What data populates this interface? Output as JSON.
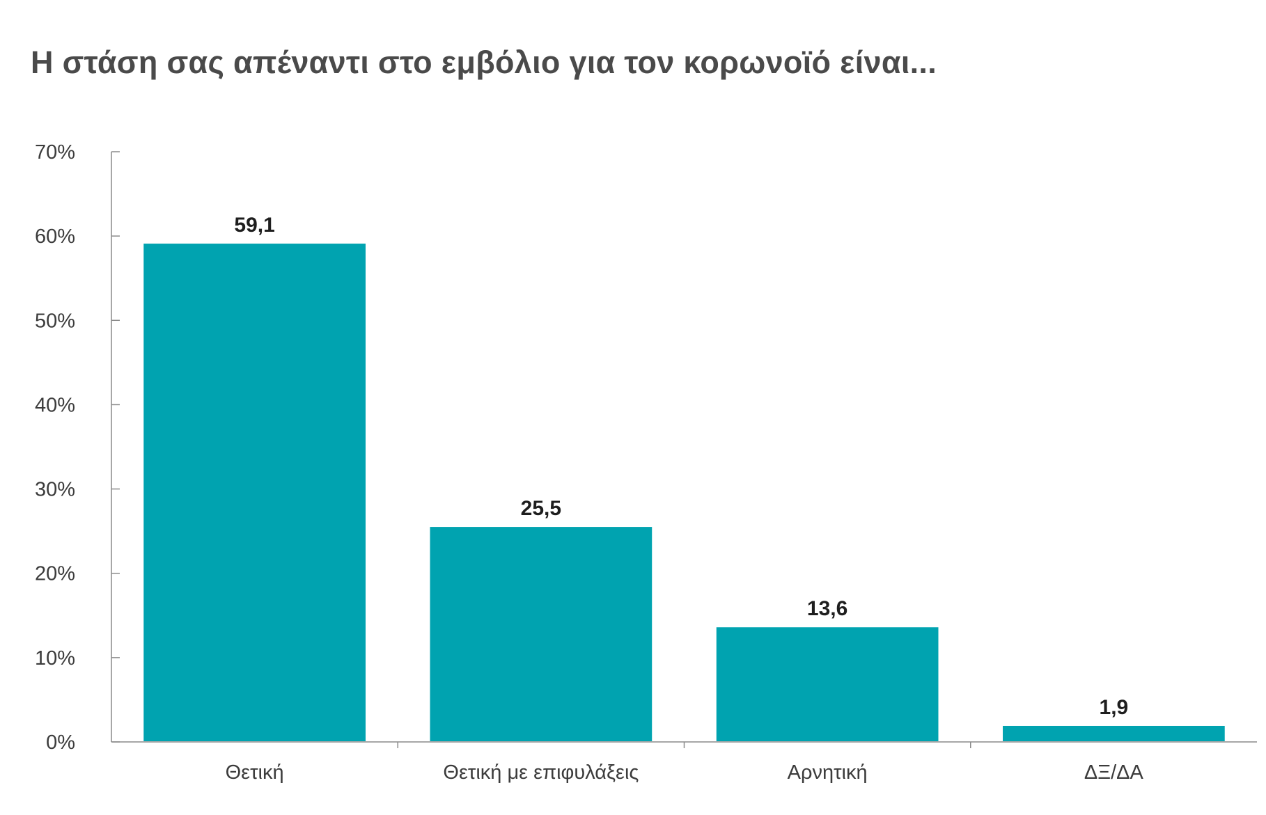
{
  "colors": {
    "bar": "#00a3b0",
    "title": "#4a4a4a",
    "axis": "#8a8a8a",
    "tick_text": "#3c3c3c",
    "data_label": "#1e1e1e",
    "background": "#ffffff"
  },
  "chart_data": {
    "type": "bar",
    "title": "Η στάση σας απέναντι στο εμβόλιο για τον κορωνοϊό είναι...",
    "xlabel": "",
    "ylabel": "",
    "categories": [
      "Θετική",
      "Θετική με επιφυλάξεις",
      "Αρνητική",
      "ΔΞ/ΔΑ"
    ],
    "values": [
      59.1,
      25.5,
      13.6,
      1.9
    ],
    "value_labels": [
      "59,1",
      "25,5",
      "13,6",
      "1,9"
    ],
    "ylim": [
      0,
      70
    ],
    "yticks": [
      0,
      10,
      20,
      30,
      40,
      50,
      60,
      70
    ],
    "ytick_labels": [
      "0%",
      "10%",
      "20%",
      "30%",
      "40%",
      "50%",
      "60%",
      "70%"
    ],
    "grid": false,
    "legend": "none"
  }
}
